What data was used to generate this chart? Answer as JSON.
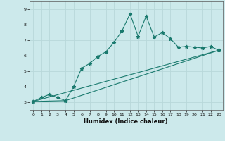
{
  "xlabel": "Humidex (Indice chaleur)",
  "bg_color": "#cce9eb",
  "grid_color": "#b8d8da",
  "line_color": "#1a7a6e",
  "xlim": [
    -0.5,
    23.5
  ],
  "ylim": [
    2.5,
    9.5
  ],
  "xticks": [
    0,
    1,
    2,
    3,
    4,
    5,
    6,
    7,
    8,
    9,
    10,
    11,
    12,
    13,
    14,
    15,
    16,
    17,
    18,
    19,
    20,
    21,
    22,
    23
  ],
  "yticks": [
    3,
    4,
    5,
    6,
    7,
    8,
    9
  ],
  "line1_x": [
    0,
    1,
    2,
    3,
    4,
    5,
    6,
    7,
    8,
    9,
    10,
    11,
    12,
    13,
    14,
    15,
    16,
    17,
    18,
    19,
    20,
    21,
    22,
    23
  ],
  "line1_y": [
    3.05,
    3.3,
    3.5,
    3.3,
    3.1,
    4.0,
    5.2,
    5.5,
    5.95,
    6.25,
    6.85,
    7.6,
    8.7,
    7.25,
    8.55,
    7.2,
    7.5,
    7.1,
    6.55,
    6.6,
    6.55,
    6.5,
    6.6,
    6.35
  ],
  "line2_x": [
    0,
    4,
    23
  ],
  "line2_y": [
    3.05,
    3.1,
    6.35
  ],
  "line3_x": [
    0,
    23
  ],
  "line3_y": [
    3.05,
    6.35
  ]
}
